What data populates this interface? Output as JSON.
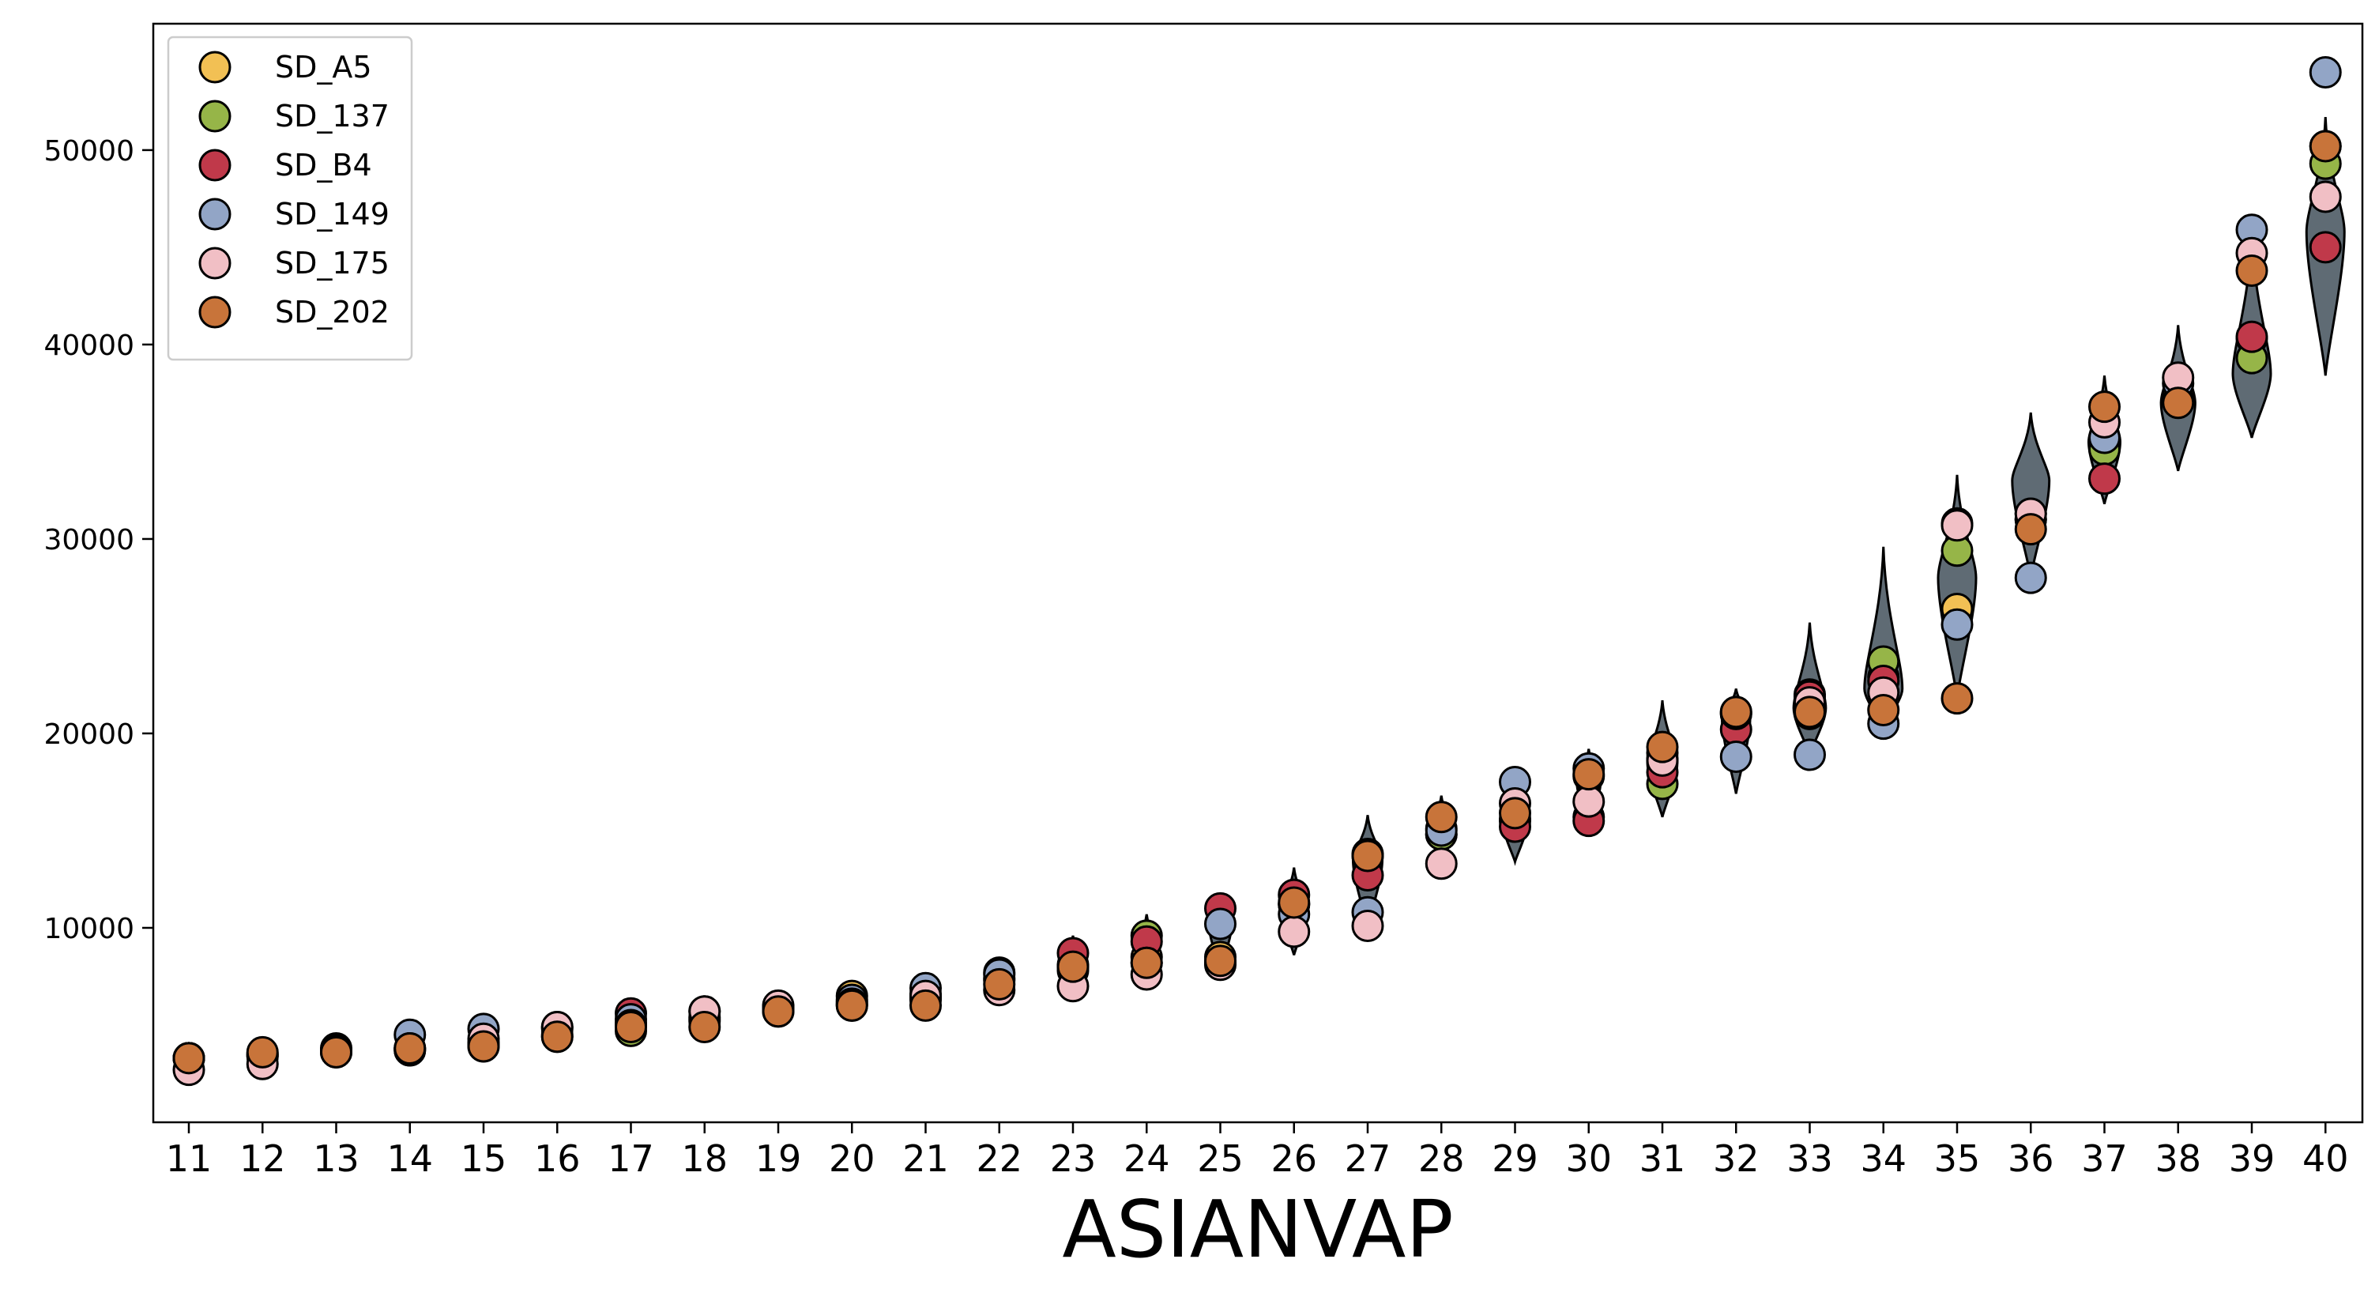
{
  "chart_data": {
    "type": "violin+scatter",
    "title": "",
    "xlabel": "ASIANVAP",
    "ylabel": "",
    "ylim": [
      0,
      56500
    ],
    "y_ticks": [
      10000,
      20000,
      30000,
      40000,
      50000
    ],
    "categories": [
      "11",
      "12",
      "13",
      "14",
      "15",
      "16",
      "17",
      "18",
      "19",
      "20",
      "21",
      "22",
      "23",
      "24",
      "25",
      "26",
      "27",
      "28",
      "29",
      "30",
      "31",
      "32",
      "33",
      "34",
      "35",
      "36",
      "37",
      "38",
      "39",
      "40"
    ],
    "grid": false,
    "legend_position": "top-left",
    "violin_color": "#5f6b74",
    "violins": [
      {
        "x": "11",
        "min": 3100,
        "max": 3500,
        "widest": 3350
      },
      {
        "x": "12",
        "min": 3300,
        "max": 3800,
        "widest": 3550
      },
      {
        "x": "13",
        "min": 3400,
        "max": 4100,
        "widest": 3750
      },
      {
        "x": "14",
        "min": 3600,
        "max": 4500,
        "widest": 4050
      },
      {
        "x": "15",
        "min": 3800,
        "max": 4800,
        "widest": 4300
      },
      {
        "x": "16",
        "min": 4200,
        "max": 5100,
        "widest": 4650
      },
      {
        "x": "17",
        "min": 4500,
        "max": 5700,
        "widest": 5100
      },
      {
        "x": "18",
        "min": 4800,
        "max": 6000,
        "widest": 5400
      },
      {
        "x": "19",
        "min": 5500,
        "max": 6200,
        "widest": 5850
      },
      {
        "x": "20",
        "min": 5900,
        "max": 6700,
        "widest": 6200
      },
      {
        "x": "21",
        "min": 6000,
        "max": 7000,
        "widest": 6500
      },
      {
        "x": "22",
        "min": 6700,
        "max": 7800,
        "widest": 7200
      },
      {
        "x": "23",
        "min": 7000,
        "max": 9600,
        "widest": 8000
      },
      {
        "x": "24",
        "min": 7700,
        "max": 10700,
        "widest": 8800
      },
      {
        "x": "25",
        "min": 8000,
        "max": 11200,
        "widest": 10000
      },
      {
        "x": "26",
        "min": 8600,
        "max": 13100,
        "widest": 11000
      },
      {
        "x": "27",
        "min": 10000,
        "max": 15800,
        "widest": 13500
      },
      {
        "x": "28",
        "min": 13300,
        "max": 16800,
        "widest": 15000
      },
      {
        "x": "29",
        "min": 13400,
        "max": 17800,
        "widest": 15500
      },
      {
        "x": "30",
        "min": 15300,
        "max": 19200,
        "widest": 17500
      },
      {
        "x": "31",
        "min": 15700,
        "max": 21700,
        "widest": 18500
      },
      {
        "x": "32",
        "min": 16900,
        "max": 22300,
        "widest": 20800
      },
      {
        "x": "33",
        "min": 18900,
        "max": 25700,
        "widest": 21300
      },
      {
        "x": "34",
        "min": 20300,
        "max": 29600,
        "widest": 22300
      },
      {
        "x": "35",
        "min": 21800,
        "max": 33300,
        "widest": 28000
      },
      {
        "x": "36",
        "min": 28000,
        "max": 36500,
        "widest": 33000
      },
      {
        "x": "37",
        "min": 31800,
        "max": 38400,
        "widest": 35000
      },
      {
        "x": "38",
        "min": 33500,
        "max": 41000,
        "widest": 37000
      },
      {
        "x": "39",
        "min": 35200,
        "max": 45800,
        "widest": 38500
      },
      {
        "x": "40",
        "min": 38400,
        "max": 51700,
        "widest": 45800
      }
    ],
    "series": [
      {
        "name": "SD_A5",
        "color": "#f2c054",
        "values": [
          3300,
          3500,
          3700,
          3800,
          4100,
          4400,
          5100,
          5400,
          5800,
          6500,
          6400,
          7300,
          8000,
          8500,
          8500,
          11200,
          13800,
          14800,
          15500,
          15700,
          19000,
          21000,
          22000,
          22900,
          26400,
          31000,
          35000,
          37500,
          40300,
          50200
        ]
      },
      {
        "name": "SD_137",
        "color": "#96b548",
        "values": [
          3300,
          3400,
          3800,
          3700,
          4000,
          4500,
          4700,
          5200,
          5700,
          6200,
          6600,
          7700,
          8100,
          9600,
          8200,
          11200,
          13700,
          14800,
          15600,
          17800,
          17400,
          21100,
          21000,
          23700,
          29400,
          31300,
          34600,
          37100,
          39300,
          49300
        ]
      },
      {
        "name": "SD_B4",
        "color": "#c0394a",
        "values": [
          3300,
          3500,
          3700,
          3700,
          3900,
          4900,
          5600,
          5300,
          5900,
          6000,
          6300,
          7400,
          8700,
          9300,
          11000,
          11700,
          12700,
          15100,
          15200,
          15500,
          18000,
          20200,
          21900,
          22700,
          30800,
          31000,
          33100,
          37100,
          40400,
          45000
        ]
      },
      {
        "name": "SD_149",
        "color": "#92a5c6",
        "values": [
          3300,
          3400,
          3600,
          4500,
          4800,
          4800,
          5300,
          5700,
          5800,
          6300,
          6900,
          7600,
          7800,
          8200,
          10200,
          10700,
          10800,
          15000,
          17500,
          18200,
          18700,
          18800,
          18900,
          20500,
          25600,
          28000,
          35200,
          38000,
          45900,
          54000
        ]
      },
      {
        "name": "SD_175",
        "color": "#f1bfc5",
        "values": [
          2700,
          3000,
          3600,
          3800,
          4300,
          4900,
          5000,
          5700,
          6000,
          6100,
          6500,
          6800,
          7000,
          7600,
          8100,
          9800,
          10100,
          13300,
          16400,
          16500,
          18600,
          21000,
          21600,
          22100,
          30700,
          31300,
          36000,
          38300,
          44700,
          47600
        ]
      },
      {
        "name": "SD_202",
        "color": "#c8743a",
        "values": [
          3300,
          3600,
          3600,
          3800,
          3900,
          4400,
          4900,
          4900,
          5700,
          6000,
          6000,
          7100,
          8000,
          8200,
          8300,
          11300,
          13700,
          15700,
          15900,
          17900,
          19300,
          21100,
          21100,
          21200,
          21800,
          30500,
          36800,
          37000,
          43800,
          50200
        ]
      }
    ]
  }
}
